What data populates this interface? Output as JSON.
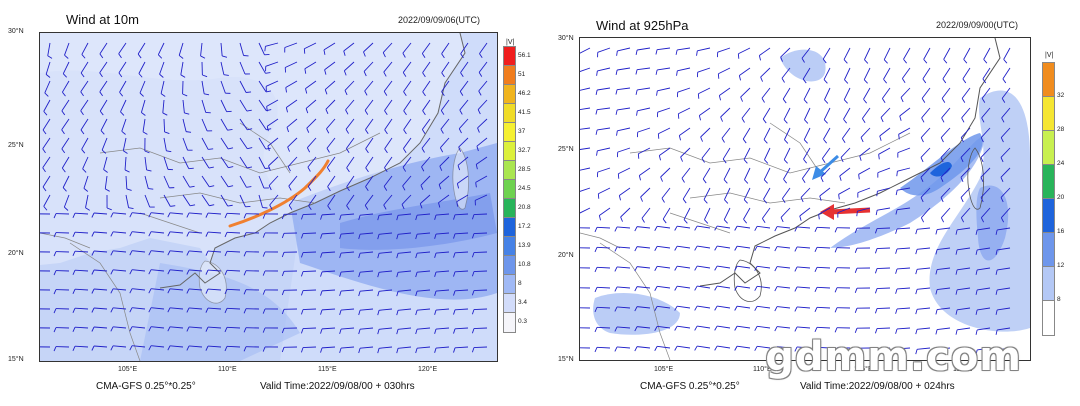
{
  "panels": [
    {
      "title": "Wind at 10m",
      "timestamp": "2022/09/09/06(UTC)",
      "model": "CMA-GFS  0.25°*0.25°",
      "valid_time": "Valid Time:2022/09/08/00 + 030hrs",
      "lat_labels": [
        "30°N",
        "25°N",
        "20°N",
        "15°N"
      ],
      "lon_labels": [
        "105°E",
        "110°E",
        "115°E",
        "120°E"
      ],
      "legend_unit": "|V|",
      "legend_levels": [
        "56.1",
        "51",
        "46.2",
        "41.5",
        "37",
        "32.7",
        "28.5",
        "24.5",
        "20.8",
        "17.2",
        "13.9",
        "10.8",
        "8",
        "3.4",
        "0.3"
      ],
      "legend_colors": [
        "#f01e1e",
        "#f07d1e",
        "#f0b41e",
        "#f0dc28",
        "#f5f032",
        "#dcf03c",
        "#aae650",
        "#6ed250",
        "#28b45a",
        "#1e64dc",
        "#4682e6",
        "#6e96eb",
        "#a0b9f5",
        "#d2dcfa",
        "#f5f5fa"
      ]
    },
    {
      "title": "Wind at 925hPa",
      "timestamp": "2022/09/09/00(UTC)",
      "model": "CMA-GFS  0.25°*0.25°",
      "valid_time": "Valid Time:2022/09/08/00 + 024hrs",
      "lat_labels": [
        "30°N",
        "25°N",
        "20°N",
        "15°N"
      ],
      "lon_labels": [
        "105°E",
        "110°E",
        "115°E",
        "120°E"
      ],
      "legend_unit": "|V|",
      "legend_levels": [
        "32",
        "28",
        "24",
        "20",
        "16",
        "12",
        "8"
      ],
      "legend_colors": [
        "#f08c1e",
        "#f5e632",
        "#c8f050",
        "#28b45a",
        "#1e64dc",
        "#6e96eb",
        "#b4c8f5",
        "#ffffff"
      ]
    }
  ],
  "watermark": "gdmm.com"
}
